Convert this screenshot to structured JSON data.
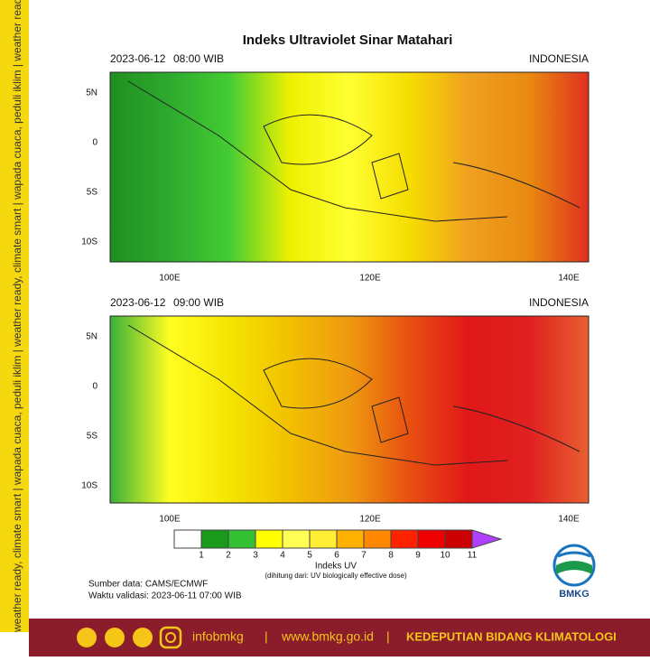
{
  "header": {
    "title": "Indeks Ultraviolet Sinar Matahari"
  },
  "side_text": "weather ready, climate smart | wapada cuaca, peduli iklim | weather ready, climate smart | wapada cuaca, peduli iklim | weather ready, climate smart | wapada cuaca, peduli iklim",
  "panels": [
    {
      "date": "2023-06-12",
      "time": "08:00 WIB",
      "region": "INDONESIA",
      "lat_labels": [
        "5N",
        "0",
        "5S",
        "10S"
      ],
      "lon_labels": [
        "100E",
        "120E",
        "140E"
      ],
      "colors": [
        "#1f8f1f",
        "#2eaa2e",
        "#44cc33",
        "#eef000",
        "#ffff33",
        "#f5dd00",
        "#f0a020",
        "#e88a10",
        "#e03020"
      ]
    },
    {
      "date": "2023-06-12",
      "time": "09:00 WIB",
      "region": "INDONESIA",
      "lat_labels": [
        "5N",
        "0",
        "5S",
        "10S"
      ],
      "lon_labels": [
        "100E",
        "120E",
        "140E"
      ],
      "colors": [
        "#39b03a",
        "#ffff22",
        "#f5e400",
        "#f2c000",
        "#ee9a10",
        "#e85010",
        "#e01818",
        "#e02020",
        "#e86030"
      ]
    }
  ],
  "colorbar": {
    "labels": [
      "1",
      "2",
      "3",
      "4",
      "5",
      "6",
      "7",
      "8",
      "9",
      "10",
      "11"
    ],
    "colors": [
      "#ffffff",
      "#1a9a1a",
      "#33c033",
      "#ffff00",
      "#ffff55",
      "#ffee33",
      "#ffb000",
      "#ff8800",
      "#ff2200",
      "#ee0000",
      "#cc0000",
      "#b040ff"
    ],
    "title": "Indeks UV",
    "note": "(dihitung dari: UV biologically effective dose)"
  },
  "source": "Sumber data: CAMS/ECMWF",
  "valid": "Waktu validasi: 2023-06-11 07:00 WIB",
  "logo": "BMKG",
  "footer": {
    "handle": "infobmkg",
    "separator": "|",
    "website": "www.bmkg.go.id",
    "department": "KEDEPUTIAN BIDANG KLIMATOLOGI"
  }
}
